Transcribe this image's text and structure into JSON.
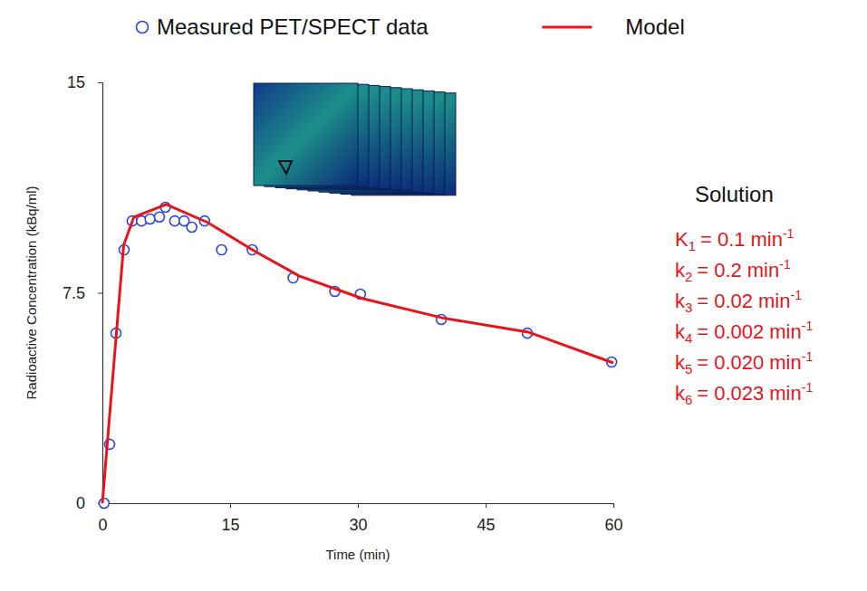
{
  "chart_data": {
    "type": "scatter",
    "x_label": "Time (min)",
    "y_label": "Radioactive Concentration (kBq/ml)",
    "xlim": [
      0,
      60
    ],
    "xticks": [
      0,
      15,
      30,
      45,
      60
    ],
    "ylim": [
      0,
      15
    ],
    "yticks": [
      0,
      7.5,
      15
    ],
    "grid": false,
    "legend": "top",
    "series": [
      {
        "name": "Measured PET/SPECT data",
        "type": "scatter",
        "marker": "circle",
        "color": "#2f45d6",
        "x": [
          0.2,
          0.85,
          1.6,
          2.55,
          3.5,
          4.6,
          5.6,
          6.7,
          7.4,
          8.5,
          9.6,
          10.5,
          12.0,
          14.0,
          17.6,
          22.4,
          27.3,
          30.3,
          39.8,
          49.9,
          59.8
        ],
        "values": [
          0,
          2.1,
          6.06,
          9.03,
          10.06,
          10.06,
          10.13,
          10.2,
          10.55,
          10.06,
          10.06,
          9.84,
          10.06,
          9.03,
          9.03,
          8.03,
          7.55,
          7.45,
          6.55,
          6.06,
          5.03
        ]
      },
      {
        "name": "Model",
        "type": "line",
        "line_style": "solid",
        "color": "#e8141b",
        "x": [
          0,
          2.5,
          3.7,
          7.5,
          12.4,
          17.8,
          23.1,
          30.5,
          40,
          50,
          60
        ],
        "values": [
          0,
          9.2,
          10.2,
          10.65,
          10.0,
          9.0,
          8.1,
          7.3,
          6.6,
          6.1,
          5.0
        ]
      }
    ],
    "annotation": {
      "title": "Solution",
      "color": "#e8141b",
      "parameters": [
        {
          "symbol": "K",
          "subscript": "1",
          "operator": "=",
          "value": 0.1,
          "label": "0.1",
          "unit": "min",
          "exponent": "-1"
        },
        {
          "symbol": "k",
          "subscript": "2",
          "operator": "=",
          "value": 0.2,
          "label": "0.2",
          "unit": "min",
          "exponent": "-1"
        },
        {
          "symbol": "k",
          "subscript": "3",
          "operator": "=",
          "value": 0.02,
          "label": "0.02",
          "unit": "min",
          "exponent": "-1"
        },
        {
          "symbol": "k",
          "subscript": "4",
          "operator": "=",
          "value": 0.002,
          "label": "0.002",
          "unit": "min",
          "exponent": "-1"
        },
        {
          "symbol": "k",
          "subscript": "5",
          "operator": "=",
          "value": 0.02,
          "label": "0.020",
          "unit": "min",
          "exponent": "-1"
        },
        {
          "symbol": "k",
          "subscript": "6",
          "operator": "=",
          "value": 0.023,
          "label": "0.023",
          "unit": "min",
          "exponent": "-1"
        }
      ]
    }
  }
}
